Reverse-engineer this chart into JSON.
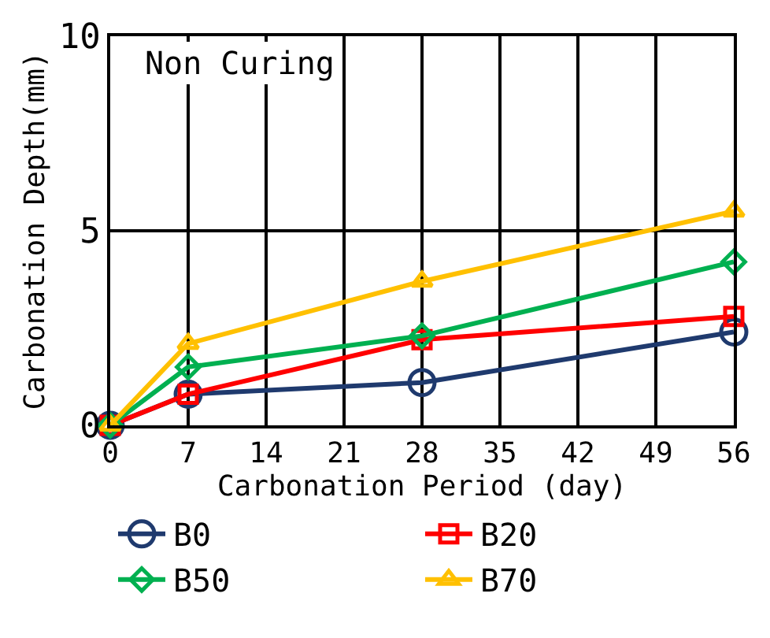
{
  "chart_data": {
    "type": "line",
    "xlabel": "Carbonation Period (day)",
    "ylabel": "Carbonation Depth(mm)",
    "annotations": [
      "Non Curing"
    ],
    "x": [
      0,
      7,
      28,
      56
    ],
    "series": [
      {
        "name": "B0",
        "color": "#1f3a6e",
        "marker": "circle",
        "values": [
          0,
          0.8,
          1.1,
          2.4
        ]
      },
      {
        "name": "B20",
        "color": "#ff0000",
        "marker": "square",
        "values": [
          0,
          0.8,
          2.2,
          2.8
        ]
      },
      {
        "name": "B50",
        "color": "#00b050",
        "marker": "diamond",
        "values": [
          0,
          1.5,
          2.3,
          4.2
        ]
      },
      {
        "name": "B70",
        "color": "#ffc000",
        "marker": "triangle",
        "values": [
          0,
          2.1,
          3.7,
          5.5
        ]
      }
    ],
    "xlim": [
      0,
      56
    ],
    "xticks": [
      0,
      7,
      14,
      21,
      28,
      35,
      42,
      49,
      56
    ],
    "ylim": [
      0,
      10
    ],
    "yticks": [
      0,
      5,
      10
    ],
    "grid": true,
    "legend": "bottom"
  }
}
